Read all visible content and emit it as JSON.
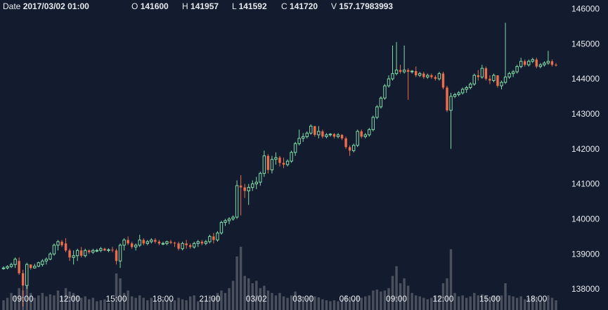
{
  "header": {
    "date_label": "Date",
    "date_value": "2017/03/02 01:00",
    "open_label": "O",
    "open_value": "141600",
    "high_label": "H",
    "high_value": "141957",
    "low_label": "L",
    "low_value": "141592",
    "close_label": "C",
    "close_value": "141720",
    "volume_label": "V",
    "volume_value": "157.17983993"
  },
  "chart_data": {
    "type": "candlestick",
    "title": "",
    "xlabel": "",
    "ylabel": "",
    "ylim": [
      137400,
      146250
    ],
    "y_ticks": [
      138000,
      139000,
      140000,
      141000,
      142000,
      143000,
      144000,
      145000,
      146000
    ],
    "x_tick_labels": [
      "09:00",
      "12:00",
      "15:00",
      "18:00",
      "21:00",
      "03/02",
      "03:00",
      "06:00",
      "09:00",
      "12:00",
      "15:00",
      "18:00"
    ],
    "x_tick_index": [
      5,
      17,
      29,
      41,
      53,
      65,
      77,
      89,
      101,
      113,
      125,
      137
    ],
    "colors": {
      "up": "#7fdba8",
      "down": "#f06a4b",
      "volume": "#4a505d",
      "background": "#131c2e"
    },
    "candles": [
      [
        0,
        138600,
        138650,
        138550,
        138600,
        20
      ],
      [
        1,
        138600,
        138680,
        138560,
        138640,
        25
      ],
      [
        2,
        138640,
        138750,
        138600,
        138700,
        35
      ],
      [
        3,
        138700,
        138900,
        138600,
        138850,
        30
      ],
      [
        4,
        138800,
        138900,
        138400,
        138450,
        45
      ],
      [
        5,
        138450,
        138550,
        137500,
        138100,
        40
      ],
      [
        6,
        138100,
        138750,
        138000,
        138700,
        60
      ],
      [
        7,
        138700,
        138700,
        138550,
        138600,
        35
      ],
      [
        8,
        138600,
        138720,
        138580,
        138650,
        25
      ],
      [
        9,
        138650,
        138780,
        138620,
        138750,
        30
      ],
      [
        10,
        138700,
        138850,
        138640,
        138800,
        35
      ],
      [
        11,
        138800,
        138900,
        138700,
        138850,
        28
      ],
      [
        12,
        138850,
        139050,
        138820,
        139000,
        32
      ],
      [
        13,
        139000,
        139300,
        138950,
        139250,
        30
      ],
      [
        14,
        139250,
        139400,
        139100,
        139350,
        40
      ],
      [
        15,
        139350,
        139400,
        139200,
        139250,
        28
      ],
      [
        16,
        139300,
        139450,
        139050,
        139100,
        45
      ],
      [
        17,
        139100,
        139150,
        138800,
        138900,
        38
      ],
      [
        18,
        138900,
        139100,
        138700,
        138950,
        35
      ],
      [
        19,
        138950,
        139150,
        138800,
        139100,
        30
      ],
      [
        20,
        139100,
        139200,
        138900,
        138950,
        25
      ],
      [
        21,
        138950,
        139150,
        138900,
        139100,
        28
      ],
      [
        22,
        139100,
        139130,
        139000,
        139050,
        22
      ],
      [
        23,
        139050,
        139150,
        139000,
        139100,
        25
      ],
      [
        24,
        139100,
        139150,
        139050,
        139100,
        18
      ],
      [
        25,
        139100,
        139200,
        139050,
        139150,
        20
      ],
      [
        26,
        139150,
        139180,
        139080,
        139100,
        22
      ],
      [
        27,
        139100,
        139160,
        139050,
        139120,
        15
      ],
      [
        28,
        139120,
        139200,
        139050,
        139100,
        18
      ],
      [
        29,
        139100,
        139150,
        138700,
        138800,
        75
      ],
      [
        30,
        138800,
        139300,
        138600,
        139250,
        65
      ],
      [
        31,
        139250,
        139450,
        139100,
        139400,
        35
      ],
      [
        32,
        139400,
        139500,
        139250,
        139300,
        40
      ],
      [
        33,
        139300,
        139350,
        139150,
        139200,
        28
      ],
      [
        34,
        139200,
        139300,
        139100,
        139250,
        25
      ],
      [
        35,
        139250,
        139550,
        139200,
        139400,
        30
      ],
      [
        36,
        139400,
        139450,
        139250,
        139300,
        25
      ],
      [
        37,
        139300,
        139400,
        139250,
        139350,
        20
      ],
      [
        38,
        139350,
        139450,
        139300,
        139400,
        25
      ],
      [
        39,
        139400,
        139450,
        139300,
        139350,
        20
      ],
      [
        40,
        139350,
        139400,
        139250,
        139300,
        18
      ],
      [
        41,
        139300,
        139350,
        139250,
        139300,
        22
      ],
      [
        42,
        139300,
        139380,
        139250,
        139350,
        20
      ],
      [
        43,
        139350,
        139400,
        139280,
        139320,
        22
      ],
      [
        44,
        139320,
        139350,
        139200,
        139300,
        20
      ],
      [
        45,
        139300,
        139350,
        139100,
        139150,
        25
      ],
      [
        46,
        139150,
        139350,
        139100,
        139300,
        22
      ],
      [
        47,
        139300,
        139400,
        139150,
        139250,
        20
      ],
      [
        48,
        139250,
        139300,
        139150,
        139200,
        28
      ],
      [
        49,
        139200,
        139350,
        139150,
        139300,
        30
      ],
      [
        50,
        139300,
        139400,
        139200,
        139350,
        18
      ],
      [
        51,
        139350,
        139400,
        139250,
        139300,
        20
      ],
      [
        52,
        139300,
        139400,
        139250,
        139350,
        22
      ],
      [
        53,
        139350,
        139550,
        139300,
        139500,
        30
      ],
      [
        54,
        139500,
        139600,
        139300,
        139400,
        25
      ],
      [
        55,
        139400,
        139650,
        139350,
        139600,
        35
      ],
      [
        56,
        139600,
        139950,
        139550,
        139900,
        40
      ],
      [
        57,
        139900,
        140000,
        139800,
        139950,
        35
      ],
      [
        58,
        139950,
        140050,
        139850,
        140000,
        45
      ],
      [
        59,
        140000,
        140100,
        139950,
        140050,
        60
      ],
      [
        60,
        140050,
        141100,
        140000,
        140950,
        110
      ],
      [
        61,
        140950,
        141250,
        140100,
        140900,
        130
      ],
      [
        62,
        140900,
        141000,
        140600,
        140800,
        70
      ],
      [
        63,
        140800,
        141000,
        140400,
        140900,
        65
      ],
      [
        64,
        140900,
        141100,
        140800,
        141000,
        55
      ],
      [
        65,
        141000,
        141200,
        140850,
        141050,
        60
      ],
      [
        66,
        141050,
        141350,
        140950,
        141300,
        45
      ],
      [
        67,
        141300,
        141950,
        141200,
        141800,
        50
      ],
      [
        68,
        141800,
        141850,
        141300,
        141400,
        40
      ],
      [
        69,
        141400,
        141800,
        141300,
        141700,
        35
      ],
      [
        70,
        141700,
        141900,
        141550,
        141750,
        30
      ],
      [
        71,
        141750,
        141800,
        141500,
        141600,
        35
      ],
      [
        72,
        141600,
        141750,
        141450,
        141550,
        28
      ],
      [
        73,
        141550,
        141700,
        141500,
        141650,
        25
      ],
      [
        74,
        141650,
        141950,
        141600,
        141900,
        30
      ],
      [
        75,
        141900,
        142200,
        141800,
        142150,
        38
      ],
      [
        76,
        142150,
        142550,
        142100,
        142300,
        30
      ],
      [
        77,
        142300,
        142450,
        142200,
        142350,
        28
      ],
      [
        78,
        142350,
        142500,
        142300,
        142450,
        25
      ],
      [
        79,
        142450,
        142700,
        142400,
        142650,
        30
      ],
      [
        80,
        142650,
        142650,
        142350,
        142400,
        28
      ],
      [
        81,
        142400,
        142650,
        142300,
        142500,
        26
      ],
      [
        82,
        142500,
        142550,
        142300,
        142350,
        22
      ],
      [
        83,
        142350,
        142450,
        142300,
        142400,
        20
      ],
      [
        84,
        142400,
        142450,
        142350,
        142420,
        18
      ],
      [
        85,
        142420,
        142450,
        142300,
        142350,
        20
      ],
      [
        86,
        142350,
        142450,
        142300,
        142400,
        18
      ],
      [
        87,
        142400,
        142420,
        142250,
        142300,
        22
      ],
      [
        88,
        142300,
        142350,
        142000,
        142050,
        30
      ],
      [
        89,
        142050,
        142100,
        141800,
        141950,
        25
      ],
      [
        90,
        141950,
        142150,
        141900,
        142100,
        22
      ],
      [
        91,
        142100,
        142550,
        142050,
        142500,
        30
      ],
      [
        92,
        142500,
        142550,
        142300,
        142350,
        25
      ],
      [
        93,
        142350,
        142450,
        142300,
        142400,
        28
      ],
      [
        94,
        142400,
        142600,
        142350,
        142550,
        30
      ],
      [
        95,
        142550,
        142950,
        142500,
        142900,
        40
      ],
      [
        96,
        142900,
        143250,
        142850,
        143200,
        42
      ],
      [
        97,
        143200,
        143500,
        143150,
        143450,
        38
      ],
      [
        98,
        143450,
        143850,
        143400,
        143800,
        40
      ],
      [
        99,
        143800,
        144100,
        143750,
        144000,
        45
      ],
      [
        100,
        144000,
        144950,
        143950,
        144150,
        70
      ],
      [
        101,
        144150,
        145050,
        144100,
        144250,
        90
      ],
      [
        102,
        144250,
        144400,
        144150,
        144200,
        55
      ],
      [
        103,
        144200,
        144950,
        144150,
        144250,
        65
      ],
      [
        104,
        144250,
        144300,
        143400,
        144200,
        50
      ],
      [
        105,
        144200,
        144250,
        144150,
        144220,
        35
      ],
      [
        106,
        144220,
        144350,
        144050,
        144100,
        30
      ],
      [
        107,
        144100,
        144200,
        144050,
        144150,
        28
      ],
      [
        108,
        144150,
        144200,
        144000,
        144050,
        25
      ],
      [
        109,
        144050,
        144150,
        144000,
        144100,
        22
      ],
      [
        110,
        144100,
        144150,
        144000,
        144050,
        25
      ],
      [
        111,
        144050,
        144100,
        143950,
        144000,
        30
      ],
      [
        112,
        144000,
        144200,
        143950,
        144150,
        30
      ],
      [
        113,
        144150,
        144200,
        143700,
        143750,
        55
      ],
      [
        114,
        143750,
        143800,
        143050,
        143100,
        65
      ],
      [
        115,
        143100,
        143600,
        142000,
        143500,
        125
      ],
      [
        116,
        143500,
        143600,
        143450,
        143550,
        35
      ],
      [
        117,
        143550,
        143650,
        143500,
        143600,
        28
      ],
      [
        118,
        143600,
        143750,
        143550,
        143700,
        30
      ],
      [
        119,
        143700,
        143800,
        143600,
        143750,
        25
      ],
      [
        120,
        143750,
        143900,
        143700,
        143850,
        28
      ],
      [
        121,
        143850,
        144150,
        143800,
        144100,
        35
      ],
      [
        122,
        144100,
        144250,
        143950,
        144050,
        30
      ],
      [
        123,
        144050,
        144400,
        144000,
        144300,
        32
      ],
      [
        124,
        144300,
        144350,
        143950,
        144000,
        28
      ],
      [
        125,
        144000,
        144100,
        143850,
        143950,
        25
      ],
      [
        126,
        143950,
        144150,
        143900,
        144100,
        30
      ],
      [
        127,
        144100,
        144100,
        143750,
        143800,
        28
      ],
      [
        128,
        143800,
        143950,
        143700,
        143900,
        30
      ],
      [
        129,
        143900,
        145600,
        143850,
        144050,
        55
      ],
      [
        130,
        144050,
        144200,
        144000,
        144150,
        30
      ],
      [
        131,
        144150,
        144250,
        144050,
        144200,
        28
      ],
      [
        132,
        144200,
        144400,
        144150,
        144350,
        25
      ],
      [
        133,
        144350,
        144600,
        144300,
        144500,
        28
      ],
      [
        134,
        144500,
        144550,
        144350,
        144400,
        22
      ],
      [
        135,
        144400,
        144550,
        144350,
        144500,
        25
      ],
      [
        136,
        144500,
        144600,
        144450,
        144550,
        28
      ],
      [
        137,
        144550,
        144600,
        144300,
        144350,
        25
      ],
      [
        138,
        144350,
        144450,
        144300,
        144400,
        20
      ],
      [
        139,
        144400,
        144500,
        144350,
        144450,
        22
      ],
      [
        140,
        144450,
        144800,
        144400,
        144500,
        30
      ],
      [
        141,
        144500,
        144550,
        144350,
        144400,
        25
      ],
      [
        142,
        144400,
        144450,
        144350,
        144380,
        20
      ]
    ]
  }
}
